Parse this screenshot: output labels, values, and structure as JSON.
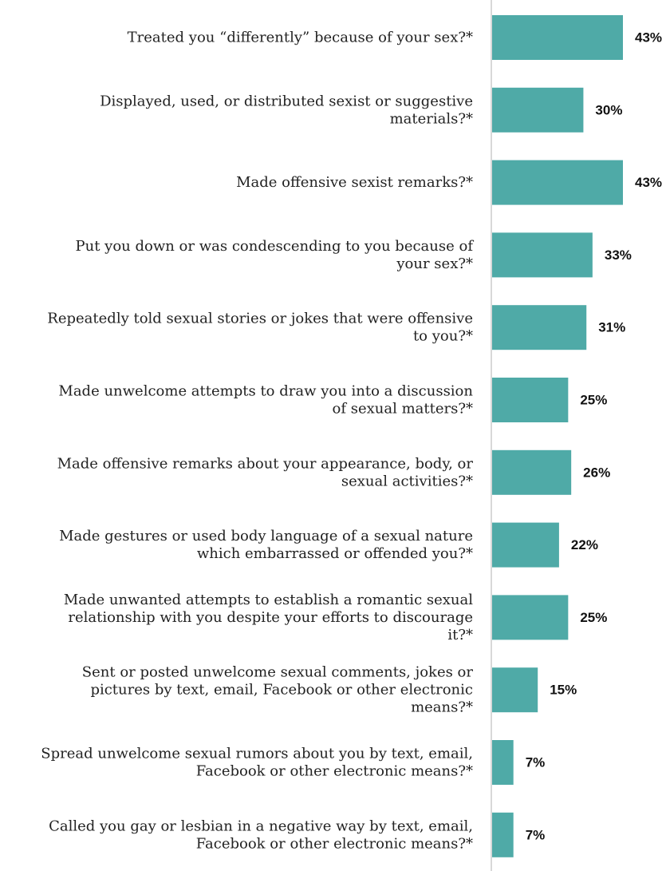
{
  "chart_data": {
    "type": "bar",
    "orientation": "horizontal",
    "categories": [
      "Treated you “differently” because of your sex?*",
      "Displayed, used, or distributed sexist or suggestive materials?*",
      "Made offensive sexist remarks?*",
      "Put you down or was condescending to you because of your sex?*",
      "Repeatedly told sexual stories or jokes that were offensive to you?*",
      "Made unwelcome attempts to draw you into a discussion of sexual matters?*",
      "Made offensive remarks about your appearance, body, or sexual activities?*",
      "Made gestures or used body language of a sexual nature which embarrassed or offended you?*",
      "Made unwanted attempts to establish a romantic sexual relationship with you despite your efforts to discourage it?*",
      "Sent or posted unwelcome sexual comments, jokes or pictures by text, email, Facebook or other electronic means?*",
      "Spread unwelcome sexual rumors about you by text, email, Facebook or other electronic means?*",
      "Called you gay or lesbian in a negative way by text, email, Facebook or other electronic means?*"
    ],
    "category_lines": [
      [
        "Treated you “differently” because of your sex?*"
      ],
      [
        "Displayed, used, or distributed sexist or suggestive",
        "materials?*"
      ],
      [
        "Made offensive sexist remarks?*"
      ],
      [
        "Put you down or was condescending to you because of",
        "your sex?*"
      ],
      [
        "Repeatedly told sexual stories or jokes that were offensive",
        "to you?*"
      ],
      [
        "Made unwelcome attempts to draw you into a discussion",
        "of sexual matters?*"
      ],
      [
        "Made offensive remarks about your appearance, body, or",
        "sexual activities?*"
      ],
      [
        "Made gestures or used body language of a sexual nature",
        "which embarrassed or offended you?*"
      ],
      [
        "Made unwanted attempts to establish a romantic sexual",
        "relationship with you despite your efforts to discourage",
        "it?*"
      ],
      [
        "Sent or posted unwelcome sexual comments, jokes or",
        "pictures by text, email, Facebook or other electronic",
        "means?*"
      ],
      [
        "Spread unwelcome sexual rumors about you by text, email,",
        "Facebook or other electronic means?*"
      ],
      [
        "Called you gay or lesbian in a negative way by text, email,",
        "Facebook or other electronic means?*"
      ]
    ],
    "values": [
      43,
      30,
      43,
      33,
      31,
      25,
      26,
      22,
      25,
      15,
      7,
      7
    ],
    "value_labels": [
      "43%",
      "30%",
      "43%",
      "33%",
      "31%",
      "25%",
      "26%",
      "22%",
      "25%",
      "15%",
      "7%",
      "7%"
    ],
    "unit": "%",
    "xlim": [
      0,
      43
    ],
    "grid": false,
    "legend": "none",
    "bar_color": "#4faaa7",
    "axis_color": "#cccccc"
  }
}
